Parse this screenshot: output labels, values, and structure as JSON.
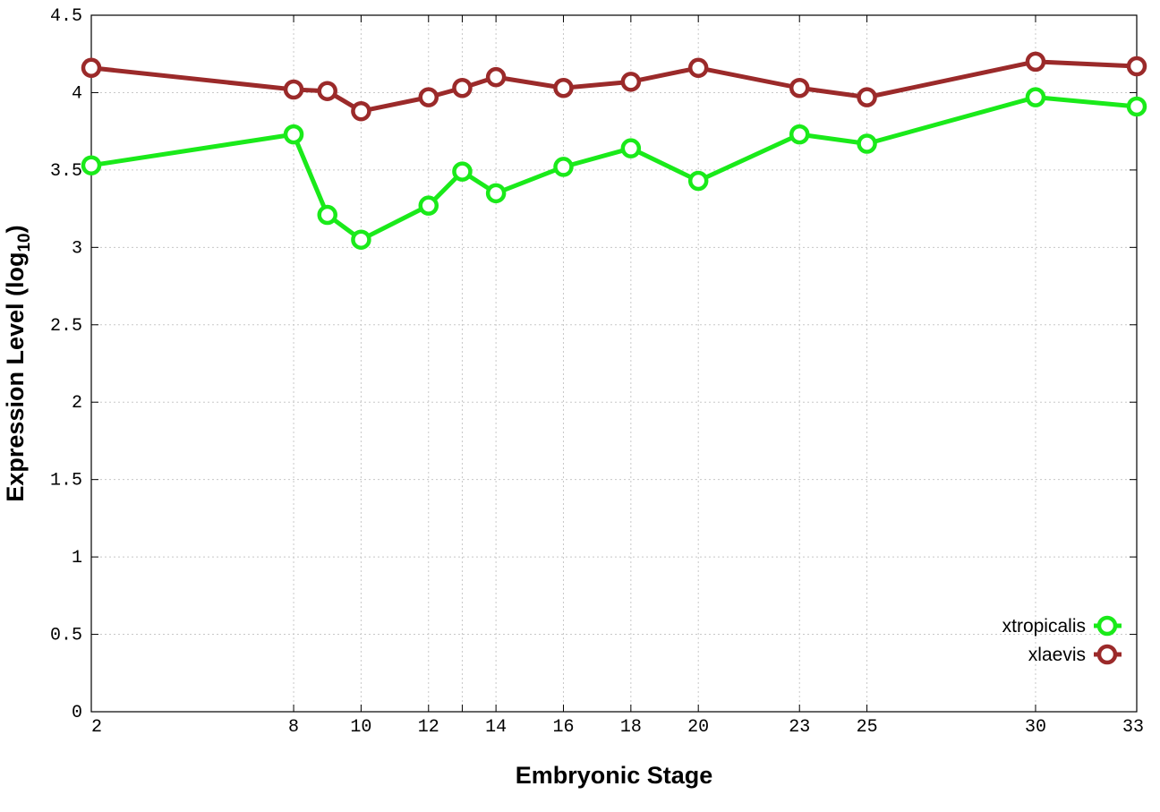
{
  "chart_data": {
    "type": "line",
    "title": "",
    "xlabel": "Embryonic Stage",
    "ylabel_main": "Expression Level (log",
    "ylabel_sub": "10",
    "ylabel_close": ")",
    "x_ticks": [
      2,
      8,
      10,
      12,
      13,
      14,
      16,
      18,
      20,
      23,
      25,
      30,
      33
    ],
    "x_tick_labels": [
      "2",
      "8",
      "10",
      "12",
      "14",
      "16",
      "18",
      "20",
      "23",
      "25",
      "30",
      "33"
    ],
    "x_tick_label_values": [
      2,
      8,
      10,
      12,
      14,
      16,
      18,
      20,
      23,
      25,
      30,
      33
    ],
    "xlim": [
      2,
      33
    ],
    "ylim": [
      0,
      4.5
    ],
    "y_ticks": [
      0,
      0.5,
      1,
      1.5,
      2,
      2.5,
      3,
      3.5,
      4,
      4.5
    ],
    "y_tick_labels": [
      "0",
      "0.5",
      "1",
      "1.5",
      "2",
      "2.5",
      "3",
      "3.5",
      "4",
      "4.5"
    ],
    "grid": true,
    "legend_position": "bottom-right",
    "x": [
      2,
      8,
      9,
      10,
      12,
      13,
      14,
      16,
      18,
      20,
      23,
      25,
      30,
      33
    ],
    "series": [
      {
        "name": "xtropicalis",
        "color": "#1aea1a",
        "values": [
          3.53,
          3.73,
          3.21,
          3.05,
          3.27,
          3.49,
          3.35,
          3.52,
          3.64,
          3.43,
          3.73,
          3.67,
          3.97,
          3.91
        ]
      },
      {
        "name": "xlaevis",
        "color": "#9b2a2a",
        "values": [
          4.16,
          4.02,
          4.01,
          3.88,
          3.97,
          4.03,
          4.1,
          4.03,
          4.07,
          4.16,
          4.03,
          3.97,
          4.2,
          4.17
        ]
      }
    ]
  }
}
